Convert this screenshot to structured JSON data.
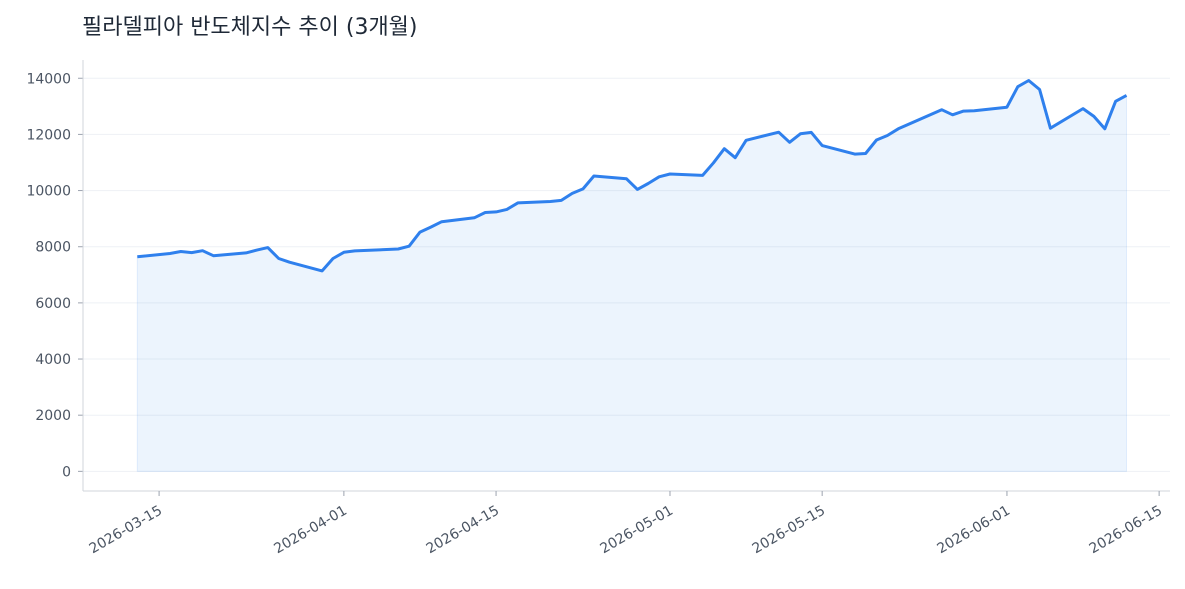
{
  "chart_data": {
    "type": "area_line",
    "title": "필라델피아 반도체지수 추이 (3개월)",
    "x": [
      "2026-03-13",
      "2026-03-16",
      "2026-03-17",
      "2026-03-18",
      "2026-03-19",
      "2026-03-20",
      "2026-03-23",
      "2026-03-24",
      "2026-03-25",
      "2026-03-26",
      "2026-03-27",
      "2026-03-30",
      "2026-03-31",
      "2026-04-01",
      "2026-04-02",
      "2026-04-06",
      "2026-04-07",
      "2026-04-08",
      "2026-04-09",
      "2026-04-10",
      "2026-04-13",
      "2026-04-14",
      "2026-04-15",
      "2026-04-16",
      "2026-04-17",
      "2026-04-20",
      "2026-04-21",
      "2026-04-22",
      "2026-04-23",
      "2026-04-24",
      "2026-04-27",
      "2026-04-28",
      "2026-04-29",
      "2026-04-30",
      "2026-05-01",
      "2026-05-04",
      "2026-05-05",
      "2026-05-06",
      "2026-05-07",
      "2026-05-08",
      "2026-05-11",
      "2026-05-12",
      "2026-05-13",
      "2026-05-14",
      "2026-05-15",
      "2026-05-18",
      "2026-05-19",
      "2026-05-20",
      "2026-05-21",
      "2026-05-22",
      "2026-05-26",
      "2026-05-27",
      "2026-05-28",
      "2026-05-29",
      "2026-06-01",
      "2026-06-02",
      "2026-06-03",
      "2026-06-04",
      "2026-06-05",
      "2026-06-08",
      "2026-06-09",
      "2026-06-10",
      "2026-06-11",
      "2026-06-12"
    ],
    "series": [
      {
        "color": "#2f80ed",
        "values": [
          7640,
          7760,
          7830,
          7790,
          7860,
          7680,
          7780,
          7880,
          7970,
          7580,
          7450,
          7140,
          7580,
          7800,
          7850,
          7920,
          8020,
          8520,
          8700,
          8890,
          9030,
          9220,
          9240,
          9330,
          9560,
          9610,
          9650,
          9900,
          10060,
          10520,
          10420,
          10040,
          10250,
          10490,
          10590,
          10540,
          10990,
          11490,
          11170,
          11790,
          12080,
          11720,
          12020,
          12070,
          11600,
          11300,
          11320,
          11800,
          11960,
          12200,
          12880,
          12700,
          12830,
          12840,
          12970,
          13700,
          13920,
          13600,
          12220,
          12920,
          12640,
          12200,
          13180,
          13390
        ]
      }
    ],
    "xlim": [
      "2026-03-08",
      "2026-06-16"
    ],
    "xticks": [
      "2026-03-15",
      "2026-04-01",
      "2026-04-15",
      "2026-05-01",
      "2026-05-15",
      "2026-06-01",
      "2026-06-15"
    ],
    "ylim": [
      -700,
      14650
    ],
    "yticks": [
      0,
      2000,
      4000,
      6000,
      8000,
      10000,
      12000,
      14000
    ],
    "grid": true
  }
}
